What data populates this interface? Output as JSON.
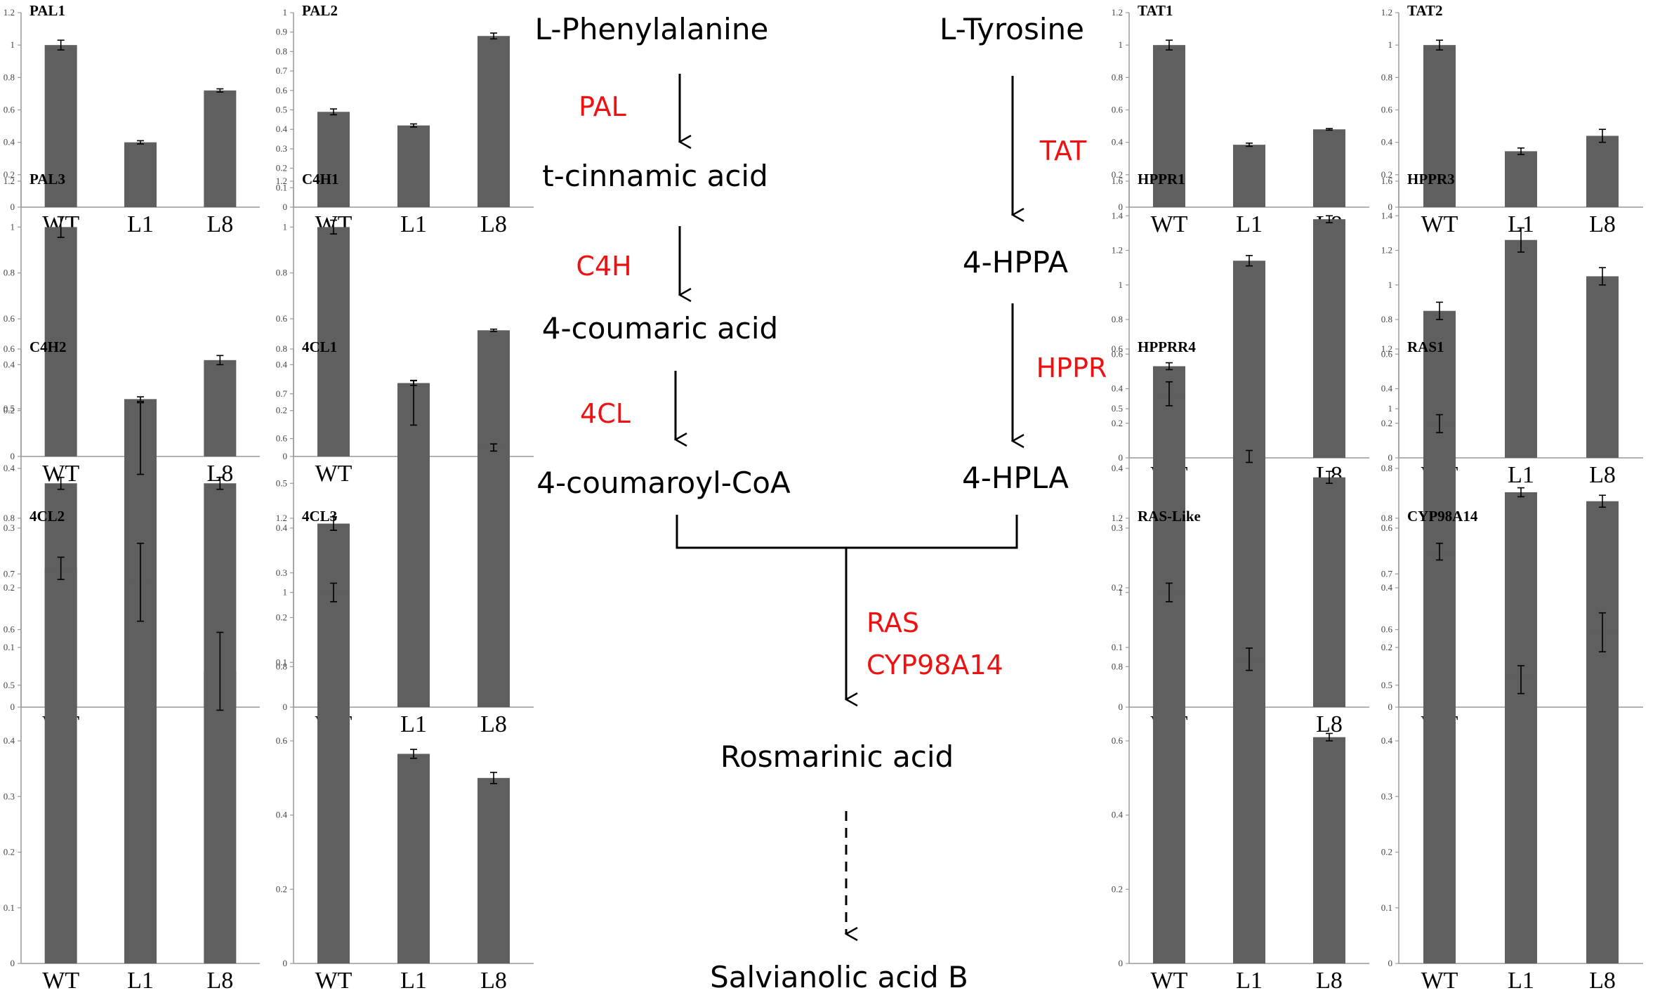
{
  "pathway": {
    "metabolites": {
      "phe": "L-Phenylalanine",
      "tcin": "t-cinnamic acid",
      "cou": "4-coumaric acid",
      "coa": "4-coumaroyl-CoA",
      "tyr": "L-Tyrosine",
      "hppa": "4-HPPA",
      "hpla": "4-HPLA",
      "ra": "Rosmarinic acid",
      "sab": "Salvianolic acid B"
    },
    "enzymes": {
      "pal": "PAL",
      "c4h": "C4H",
      "cl4": "4CL",
      "tat": "TAT",
      "hppr": "HPPR",
      "ras": "RAS",
      "cyp": "CYP98A14"
    },
    "colors": {
      "enzyme": "#ee1111",
      "metabolite": "#000000"
    }
  },
  "chart_data": [
    {
      "type": "bar",
      "title": "PAL1",
      "categories": [
        "WT",
        "L1",
        "L8"
      ],
      "values": [
        1.0,
        0.4,
        0.72
      ],
      "errors": [
        0.03,
        0.01,
        0.01
      ],
      "ylim": [
        0,
        1.2
      ],
      "yticks": [
        "0",
        "0.2",
        "0.4",
        "0.6",
        "0.8",
        "1",
        "1.2"
      ]
    },
    {
      "type": "bar",
      "title": "PAL2",
      "categories": [
        "WT",
        "L1",
        "L8"
      ],
      "values": [
        0.49,
        0.42,
        0.88
      ],
      "errors": [
        0.015,
        0.008,
        0.015
      ],
      "ylim": [
        0,
        1
      ],
      "yticks": [
        "0",
        "0.1",
        "0.2",
        "0.3",
        "0.4",
        "0.5",
        "0.6",
        "0.7",
        "0.8",
        "0.9",
        "1"
      ]
    },
    {
      "type": "bar",
      "title": "PAL3",
      "categories": [
        "WT",
        "L1",
        "L8"
      ],
      "values": [
        1.0,
        0.25,
        0.42
      ],
      "errors": [
        0.045,
        0.01,
        0.02
      ],
      "ylim": [
        0,
        1.2
      ],
      "yticks": [
        "0",
        "0.2",
        "0.4",
        "0.6",
        "0.8",
        "1",
        "1.2"
      ]
    },
    {
      "type": "bar",
      "title": "C4H1",
      "categories": [
        "WT",
        "L1",
        "L8"
      ],
      "values": [
        1.0,
        0.32,
        0.55
      ],
      "errors": [
        0.03,
        0.01,
        0.005
      ],
      "ylim": [
        0,
        1.2
      ],
      "yticks": [
        "0",
        "0.2",
        "0.4",
        "0.6",
        "0.8",
        "1",
        "1.2"
      ]
    },
    {
      "type": "bar",
      "title": "C4H2",
      "categories": [
        "WT",
        "L1",
        "L8"
      ],
      "values": [
        0.375,
        0.45,
        0.375
      ],
      "errors": [
        0.01,
        0.06,
        0.01
      ],
      "ylim": [
        0,
        0.6
      ],
      "yticks": [
        "0",
        "0.1",
        "0.2",
        "0.3",
        "0.4",
        "0.5",
        "0.6"
      ]
    },
    {
      "type": "bar",
      "title": "4CL1",
      "categories": [
        "WT",
        "L1",
        "L8"
      ],
      "values": [
        0.41,
        0.68,
        0.58
      ],
      "errors": [
        0.015,
        0.05,
        0.008
      ],
      "ylim": [
        0,
        0.8
      ],
      "yticks": [
        "0",
        "0.1",
        "0.2",
        "0.3",
        "0.4",
        "0.5",
        "0.6",
        "0.7",
        "0.8"
      ]
    },
    {
      "type": "bar",
      "title": "4CL2",
      "categories": [
        "WT",
        "L1",
        "L8"
      ],
      "values": [
        0.71,
        0.685,
        0.525
      ],
      "errors": [
        0.02,
        0.07,
        0.07
      ],
      "ylim": [
        0,
        0.8
      ],
      "yticks": [
        "0",
        "0.1",
        "0.2",
        "0.3",
        "0.4",
        "0.5",
        "0.6",
        "0.7",
        "0.8"
      ]
    },
    {
      "type": "bar",
      "title": "4CL3",
      "categories": [
        "WT",
        "L1",
        "L8"
      ],
      "values": [
        1.0,
        0.565,
        0.5
      ],
      "errors": [
        0.025,
        0.012,
        0.015
      ],
      "ylim": [
        0,
        1.2
      ],
      "yticks": [
        "0",
        "0.2",
        "0.4",
        "0.6",
        "0.8",
        "1",
        "1.2"
      ]
    },
    {
      "type": "bar",
      "title": "TAT1",
      "categories": [
        "WT",
        "L1",
        "L8"
      ],
      "values": [
        1.0,
        0.385,
        0.48
      ],
      "errors": [
        0.03,
        0.01,
        0.005
      ],
      "ylim": [
        0,
        1.2
      ],
      "yticks": [
        "0",
        "0.2",
        "0.4",
        "0.6",
        "0.8",
        "1",
        "1.2"
      ]
    },
    {
      "type": "bar",
      "title": "TAT2",
      "categories": [
        "WT",
        "L1",
        "L8"
      ],
      "values": [
        1.0,
        0.345,
        0.44
      ],
      "errors": [
        0.03,
        0.02,
        0.04
      ],
      "ylim": [
        0,
        1.2
      ],
      "yticks": [
        "0",
        "0.2",
        "0.4",
        "0.6",
        "0.8",
        "1",
        "1.2"
      ]
    },
    {
      "type": "bar",
      "title": "HPPR1",
      "categories": [
        "WT",
        "L1",
        "L8"
      ],
      "values": [
        0.53,
        1.14,
        1.38
      ],
      "errors": [
        0.02,
        0.03,
        0.02
      ],
      "ylim": [
        0,
        1.6
      ],
      "yticks": [
        "0",
        "0.2",
        "0.4",
        "0.6",
        "0.8",
        "1",
        "1.2",
        "1.4",
        "1.6"
      ]
    },
    {
      "type": "bar",
      "title": "HPPR3",
      "categories": [
        "WT",
        "L1",
        "L8"
      ],
      "values": [
        0.85,
        1.26,
        1.05
      ],
      "errors": [
        0.05,
        0.07,
        0.05
      ],
      "ylim": [
        0,
        1.6
      ],
      "yticks": [
        "0",
        "0.2",
        "0.4",
        "0.6",
        "0.8",
        "1",
        "1.2",
        "1.4",
        "1.6"
      ]
    },
    {
      "type": "bar",
      "title": "HPPRR4",
      "categories": [
        "WT",
        "L1",
        "L8"
      ],
      "values": [
        0.525,
        0.42,
        0.385
      ],
      "errors": [
        0.02,
        0.01,
        0.01
      ],
      "ylim": [
        0,
        0.6
      ],
      "yticks": [
        "0",
        "0.1",
        "0.2",
        "0.3",
        "0.4",
        "0.5",
        "0.6"
      ]
    },
    {
      "type": "bar",
      "title": "RAS1",
      "categories": [
        "WT",
        "L1",
        "L8"
      ],
      "values": [
        0.95,
        0.72,
        0.69
      ],
      "errors": [
        0.03,
        0.015,
        0.02
      ],
      "ylim": [
        0,
        1.2
      ],
      "yticks": [
        "0",
        "0.2",
        "0.4",
        "0.6",
        "0.8",
        "1",
        "1.2"
      ]
    },
    {
      "type": "bar",
      "title": "RAS-Like",
      "categories": [
        "WT",
        "L1",
        "L8"
      ],
      "values": [
        1.0,
        0.82,
        0.61
      ],
      "errors": [
        0.025,
        0.03,
        0.01
      ],
      "ylim": [
        0,
        1.2
      ],
      "yticks": [
        "0",
        "0.2",
        "0.4",
        "0.6",
        "0.8",
        "1",
        "1.2"
      ]
    },
    {
      "type": "bar",
      "title": "CYP98A14",
      "categories": [
        "WT",
        "L1",
        "L8"
      ],
      "values": [
        0.74,
        0.51,
        0.595
      ],
      "errors": [
        0.015,
        0.025,
        0.035
      ],
      "ylim": [
        0,
        0.8
      ],
      "yticks": [
        "0",
        "0.1",
        "0.2",
        "0.3",
        "0.4",
        "0.5",
        "0.6",
        "0.7",
        "0.8"
      ]
    }
  ]
}
